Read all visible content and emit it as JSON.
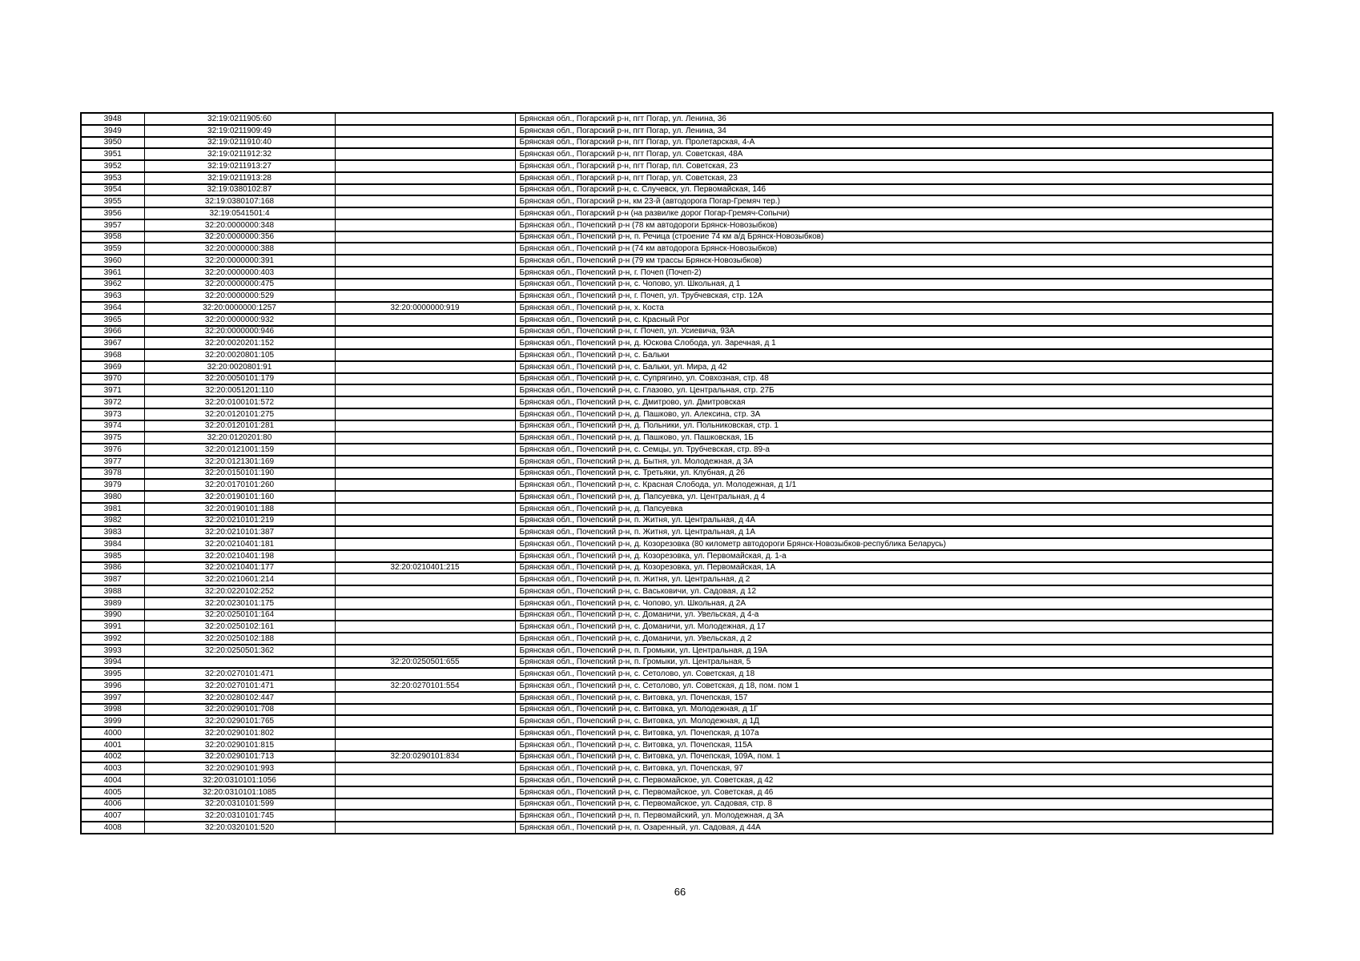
{
  "page": {
    "number_label": "66"
  },
  "table": {
    "rows": [
      [
        "3948",
        "32:19:0211905:60",
        "",
        "Брянская обл., Погарский р-н, пгт Погар, ул. Ленина, 36"
      ],
      [
        "3949",
        "32:19:0211909:49",
        "",
        "Брянская обл., Погарский р-н, пгт Погар, ул. Ленина, 34"
      ],
      [
        "3950",
        "32:19:0211910:40",
        "",
        "Брянская обл., Погарский р-н, пгт Погар, ул. Пролетарская, 4-А"
      ],
      [
        "3951",
        "32:19:0211912:32",
        "",
        "Брянская обл., Погарский р-н, пгт Погар, ул. Советская, 48А"
      ],
      [
        "3952",
        "32:19:0211913:27",
        "",
        "Брянская обл., Погарский р-н, пгт Погар, пл. Советская, 23"
      ],
      [
        "3953",
        "32:19:0211913:28",
        "",
        "Брянская обл., Погарский р-н, пгт Погар, ул. Советская, 23"
      ],
      [
        "3954",
        "32:19:0380102:87",
        "",
        "Брянская обл., Погарский р-н, с. Случевск, ул. Первомайская, 146"
      ],
      [
        "3955",
        "32:19:0380107:168",
        "",
        "Брянская обл., Погарский р-н, км 23-й (автодорога Погар-Гремяч тер.)"
      ],
      [
        "3956",
        "32:19:0541501:4",
        "",
        "Брянская обл., Погарский р-н (на развилке дорог Погар-Гремяч-Сопычи)"
      ],
      [
        "3957",
        "32:20:0000000:348",
        "",
        "Брянская обл., Почепский р-н (78 км автодороги Брянск-Новозыбков)"
      ],
      [
        "3958",
        "32:20:0000000:356",
        "",
        "Брянская обл., Почепский р-н, п. Речица (строение 74 км а/д Брянск-Новозыбков)"
      ],
      [
        "3959",
        "32:20:0000000:388",
        "",
        "Брянская обл., Почепский р-н (74 км автодорога Брянск-Новозыбков)"
      ],
      [
        "3960",
        "32:20:0000000:391",
        "",
        "Брянская обл., Почепский р-н (79 км трассы Брянск-Новозыбков)"
      ],
      [
        "3961",
        "32:20:0000000:403",
        "",
        "Брянская обл., Почепский р-н, г. Почеп (Почеп-2)"
      ],
      [
        "3962",
        "32:20:0000000:475",
        "",
        "Брянская обл., Почепский р-н, с. Чопово, ул. Школьная, д 1"
      ],
      [
        "3963",
        "32:20:0000000:529",
        "",
        "Брянская обл., Почепский р-н, г. Почеп, ул. Трубчевская, стр. 12А"
      ],
      [
        "3964",
        "32:20:0000000:1257",
        "32:20:0000000:919",
        "Брянская обл., Почепский р-н, х. Коста"
      ],
      [
        "3965",
        "32:20:0000000:932",
        "",
        "Брянская обл., Почепский р-н, с. Красный Рог"
      ],
      [
        "3966",
        "32:20:0000000:946",
        "",
        "Брянская обл., Почепский р-н, г. Почеп, ул. Усиевича, 93А"
      ],
      [
        "3967",
        "32:20:0020201:152",
        "",
        "Брянская обл., Почепский р-н, д. Юскова Слобода, ул. Заречная, д 1"
      ],
      [
        "3968",
        "32:20:0020801:105",
        "",
        "Брянская обл., Почепский р-н, с. Бальки"
      ],
      [
        "3969",
        "32:20:0020801:91",
        "",
        "Брянская обл., Почепский р-н, с. Бальки, ул. Мира, д 42"
      ],
      [
        "3970",
        "32:20:0050101:179",
        "",
        "Брянская обл., Почепский р-н, с. Супрягино, ул. Совхозная, стр. 48"
      ],
      [
        "3971",
        "32:20:0051201:110",
        "",
        "Брянская обл., Почепский р-н, с. Глазово, ул. Центральная, стр. 27Б"
      ],
      [
        "3972",
        "32:20:0100101:572",
        "",
        "Брянская обл., Почепский р-н, с. Дмитрово, ул. Дмитровская"
      ],
      [
        "3973",
        "32:20:0120101:275",
        "",
        "Брянская обл., Почепский р-н, д. Пашково, ул. Алексина, стр. 3А"
      ],
      [
        "3974",
        "32:20:0120101:281",
        "",
        "Брянская обл., Почепский р-н, д. Польники, ул. Польниковская, стр. 1"
      ],
      [
        "3975",
        "32:20:0120201:80",
        "",
        "Брянская обл., Почепский р-н, д. Пашково, ул. Пашковская, 1Б"
      ],
      [
        "3976",
        "32:20:0121001:159",
        "",
        "Брянская обл., Почепский р-н, с. Семцы, ул. Трубчевская, стр. 89-а"
      ],
      [
        "3977",
        "32:20:0121301:169",
        "",
        "Брянская обл., Почепский р-н, д. Бытня, ул. Молодежная, д 3А"
      ],
      [
        "3978",
        "32:20:0150101:190",
        "",
        "Брянская обл., Почепский р-н, с. Третьяки, ул. Клубная, д 26"
      ],
      [
        "3979",
        "32:20:0170101:260",
        "",
        "Брянская обл., Почепский р-н, с. Красная Слобода, ул. Молодежная, д 1/1"
      ],
      [
        "3980",
        "32:20:0190101:160",
        "",
        "Брянская обл., Почепский р-н, д. Папсуевка, ул. Центральная, д 4"
      ],
      [
        "3981",
        "32:20:0190101:188",
        "",
        "Брянская обл., Почепский р-н, д. Папсуевка"
      ],
      [
        "3982",
        "32:20:0210101:219",
        "",
        "Брянская обл., Почепский р-н, п. Житня, ул. Центральная, д 4А"
      ],
      [
        "3983",
        "32:20:0210101:387",
        "",
        "Брянская обл., Почепский р-н, п. Житня, ул. Центральная, д 1А"
      ],
      [
        "3984",
        "32:20:0210401:181",
        "",
        "Брянская обл., Почепский р-н, д. Козорезовка (80 километр автодороги Брянск-Новозыбков-республика Беларусь)"
      ],
      [
        "3985",
        "32:20:0210401:198",
        "",
        "Брянская обл., Почепский р-н, д. Козорезовка, ул. Первомайская, д. 1-а"
      ],
      [
        "3986",
        "32:20:0210401:177",
        "32:20:0210401:215",
        "Брянская обл., Почепский р-н, д. Козорезовка, ул. Первомайская, 1А"
      ],
      [
        "3987",
        "32:20:0210601:214",
        "",
        "Брянская обл., Почепский р-н, п. Житня, ул. Центральная, д 2"
      ],
      [
        "3988",
        "32:20:0220102:252",
        "",
        "Брянская обл., Почепский р-н, с. Васьковичи, ул. Садовая, д 12"
      ],
      [
        "3989",
        "32:20:0230101:175",
        "",
        "Брянская обл., Почепский р-н, с. Чопово, ул. Школьная, д 2А"
      ],
      [
        "3990",
        "32:20:0250101:164",
        "",
        "Брянская обл., Почепский р-н, с. Доманичи, ул. Увельская, д 4-а"
      ],
      [
        "3991",
        "32:20:0250102:161",
        "",
        "Брянская обл., Почепский р-н, с. Доманичи, ул. Молодежная, д 17"
      ],
      [
        "3992",
        "32:20:0250102:188",
        "",
        "Брянская обл., Почепский р-н, с. Доманичи, ул. Увельская, д 2"
      ],
      [
        "3993",
        "32:20:0250501:362",
        "",
        "Брянская обл., Почепский р-н, п. Громыки, ул. Центральная, д 19А"
      ],
      [
        "3994",
        "",
        "32:20:0250501:655",
        "Брянская обл., Почепский р-н, п. Громыки, ул. Центральная, 5"
      ],
      [
        "3995",
        "32:20:0270101:471",
        "",
        "Брянская обл., Почепский р-н, с. Сетолово, ул. Советская, д 18"
      ],
      [
        "3996",
        "32:20:0270101:471",
        "32:20:0270101:554",
        "Брянская обл., Почепский р-н, с. Сетолово, ул. Советская, д 18, пом. пом 1"
      ],
      [
        "3997",
        "32:20:0280102:447",
        "",
        "Брянская обл., Почепский р-н, с. Витовка, ул. Почепская, 157"
      ],
      [
        "3998",
        "32:20:0290101:708",
        "",
        "Брянская обл., Почепский р-н, с. Витовка, ул. Молодежная, д 1Г"
      ],
      [
        "3999",
        "32:20:0290101:765",
        "",
        "Брянская обл., Почепский р-н, с. Витовка, ул. Молодежная, д 1Д"
      ],
      [
        "4000",
        "32:20:0290101:802",
        "",
        "Брянская обл., Почепский р-н, с. Витовка, ул. Почепская, д 107а"
      ],
      [
        "4001",
        "32:20:0290101:815",
        "",
        "Брянская обл., Почепский р-н, с. Витовка, ул. Почепская, 115А"
      ],
      [
        "4002",
        "32:20:0290101:713",
        "32:20:0290101:834",
        "Брянская обл., Почепский р-н, с. Витовка, ул. Почепская, 109А, пом. 1"
      ],
      [
        "4003",
        "32:20:0290101:993",
        "",
        "Брянская обл., Почепский р-н, с. Витовка, ул. Почепская, 97"
      ],
      [
        "4004",
        "32:20:0310101:1056",
        "",
        "Брянская обл., Почепский р-н, с. Первомайское, ул. Советская, д 42"
      ],
      [
        "4005",
        "32:20:0310101:1085",
        "",
        "Брянская обл., Почепский р-н, с. Первомайское, ул. Советская, д 46"
      ],
      [
        "4006",
        "32:20:0310101:599",
        "",
        "Брянская обл., Почепский р-н, с. Первомайское, ул. Садовая, стр. 8"
      ],
      [
        "4007",
        "32:20:0310101:745",
        "",
        "Брянская обл., Почепский р-н, п. Первомайский, ул. Молодежная, д 3А"
      ],
      [
        "4008",
        "32:20:0320101:520",
        "",
        "Брянская обл., Почепский р-н, п. Озаренный, ул. Садовая, д 44А"
      ]
    ]
  }
}
